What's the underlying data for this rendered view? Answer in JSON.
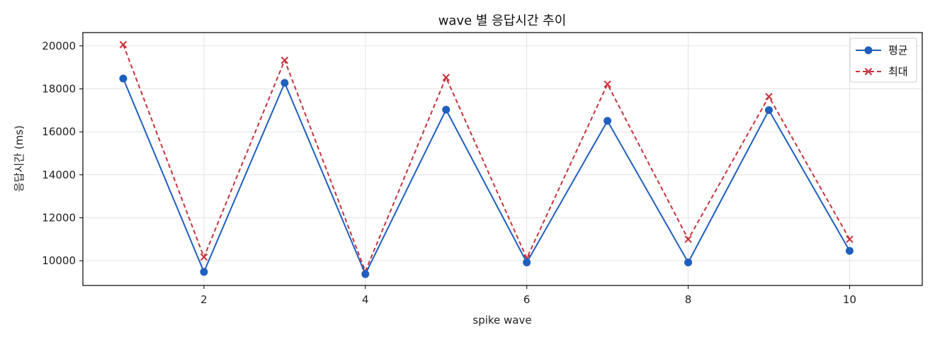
{
  "chart_data": {
    "type": "line",
    "title": "wave 별 응답시간 추이",
    "xlabel": "spike wave",
    "ylabel": "응답시간 (ms)",
    "x": [
      1,
      2,
      3,
      4,
      5,
      6,
      7,
      8,
      9,
      10
    ],
    "xlim": [
      0.5,
      10.9
    ],
    "ylim": [
      8850,
      20620
    ],
    "xticks": [
      2,
      4,
      6,
      8,
      10
    ],
    "yticks": [
      10000,
      12000,
      14000,
      16000,
      18000,
      20000
    ],
    "xtick_labels": [
      "2",
      "4",
      "6",
      "8",
      "10"
    ],
    "ytick_labels": [
      "10000",
      "12000",
      "14000",
      "16000",
      "18000",
      "20000"
    ],
    "grid": true,
    "legend_position": "top-right",
    "series": [
      {
        "name": "평균",
        "color": "#1f5fbf",
        "line_style": "solid",
        "marker": "circle",
        "values": [
          18480,
          9480,
          18280,
          9380,
          17030,
          9920,
          16510,
          9920,
          17010,
          10460
        ]
      },
      {
        "name": "최대",
        "color": "#c8323a",
        "line_style": "dashed",
        "marker": "x",
        "values": [
          20060,
          10170,
          19330,
          9510,
          18530,
          10120,
          18220,
          11000,
          17640,
          11000
        ]
      }
    ]
  }
}
